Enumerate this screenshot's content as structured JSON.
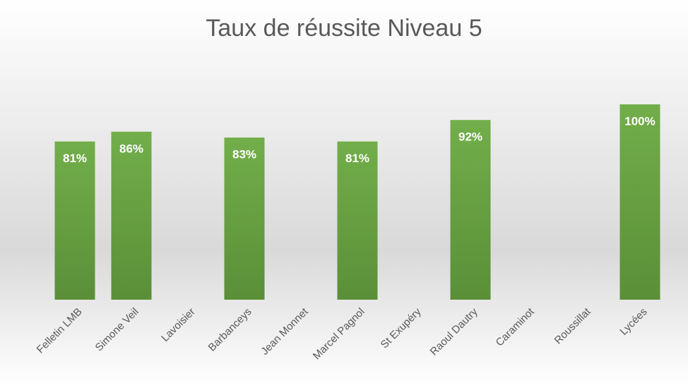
{
  "chart_data": {
    "type": "bar",
    "title": "Taux de réussite Niveau 5",
    "categories": [
      "Felletin LMB",
      "Simone Veil",
      "Lavoisier",
      "Barbanceys",
      "Jean Monnet",
      "Marcel Pagnol",
      "St Exupéry",
      "Raoul Dautry",
      "Caraminot",
      "Roussillat",
      "Lycées"
    ],
    "values": [
      81,
      86,
      null,
      83,
      null,
      81,
      null,
      92,
      null,
      null,
      100
    ],
    "value_labels": [
      "81%",
      "86%",
      null,
      "83%",
      null,
      "81%",
      null,
      "92%",
      null,
      null,
      "100%"
    ],
    "color": "#70ad47",
    "ylim": [
      0,
      100
    ]
  }
}
